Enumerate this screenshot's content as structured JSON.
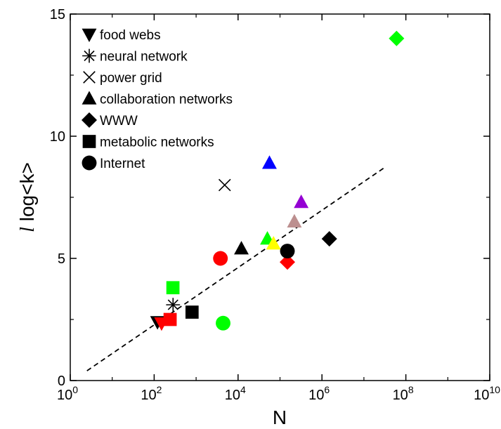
{
  "chart_data": {
    "type": "scatter",
    "xlabel": "N",
    "ylabel_italic": "l",
    "ylabel_rest": " log<k>",
    "x_scale": "log",
    "xlim": [
      1,
      10000000000
    ],
    "ylim": [
      0,
      15
    ],
    "x_ticks": [
      {
        "value": 1,
        "base": "10",
        "exp": "0"
      },
      {
        "value": 100,
        "base": "10",
        "exp": "2"
      },
      {
        "value": 10000,
        "base": "10",
        "exp": "4"
      },
      {
        "value": 1000000,
        "base": "10",
        "exp": "6"
      },
      {
        "value": 100000000,
        "base": "10",
        "exp": "8"
      },
      {
        "value": 10000000000,
        "base": "10",
        "exp": "10"
      }
    ],
    "y_ticks": [
      {
        "value": 0,
        "label": "0"
      },
      {
        "value": 5,
        "label": "5"
      },
      {
        "value": 10,
        "label": "10"
      },
      {
        "value": 15,
        "label": "15"
      }
    ],
    "grid": false,
    "legend_position": "top-left",
    "legend": [
      {
        "marker": "triangle-down",
        "label": "food webs"
      },
      {
        "marker": "asterisk",
        "label": "neural network"
      },
      {
        "marker": "cross",
        "label": "power grid"
      },
      {
        "marker": "triangle-up",
        "label": "collaboration networks"
      },
      {
        "marker": "diamond",
        "label": "WWW"
      },
      {
        "marker": "square",
        "label": "metabolic networks"
      },
      {
        "marker": "circle",
        "label": "Internet"
      }
    ],
    "fit_line": {
      "style": "dashed",
      "x": [
        2.5,
        30000000
      ],
      "y": [
        0.4,
        8.7
      ]
    },
    "points": [
      {
        "marker": "triangle-down",
        "x": 120,
        "y": 2.4,
        "color": "#000000"
      },
      {
        "marker": "triangle-down",
        "x": 150,
        "y": 2.35,
        "color": "#ff0000"
      },
      {
        "marker": "asterisk",
        "x": 282,
        "y": 3.1,
        "color": "#000000"
      },
      {
        "marker": "cross",
        "x": 4800,
        "y": 8.0,
        "color": "#000000"
      },
      {
        "marker": "triangle-up",
        "x": 12000,
        "y": 5.4,
        "color": "#000000"
      },
      {
        "marker": "triangle-up",
        "x": 50000,
        "y": 5.8,
        "color": "#00ff00"
      },
      {
        "marker": "triangle-up",
        "x": 70000,
        "y": 5.6,
        "color": "#ffff00"
      },
      {
        "marker": "triangle-up",
        "x": 56000,
        "y": 8.9,
        "color": "#0000ff"
      },
      {
        "marker": "triangle-up",
        "x": 220000,
        "y": 6.5,
        "color": "#bc8f8f"
      },
      {
        "marker": "triangle-up",
        "x": 320000,
        "y": 7.3,
        "color": "#9400d3"
      },
      {
        "marker": "diamond",
        "x": 150000,
        "y": 4.85,
        "color": "#ff0000"
      },
      {
        "marker": "diamond",
        "x": 1500000,
        "y": 5.8,
        "color": "#000000"
      },
      {
        "marker": "diamond",
        "x": 60000000,
        "y": 14.0,
        "color": "#00ff00"
      },
      {
        "marker": "square",
        "x": 240,
        "y": 2.5,
        "color": "#ff0000"
      },
      {
        "marker": "square",
        "x": 280,
        "y": 3.8,
        "color": "#00ff00"
      },
      {
        "marker": "square",
        "x": 800,
        "y": 2.8,
        "color": "#000000"
      },
      {
        "marker": "circle",
        "x": 3800,
        "y": 5.0,
        "color": "#ff0000"
      },
      {
        "marker": "circle",
        "x": 4400,
        "y": 2.35,
        "color": "#00ff00"
      },
      {
        "marker": "circle",
        "x": 150000,
        "y": 5.3,
        "color": "#000000"
      }
    ]
  }
}
